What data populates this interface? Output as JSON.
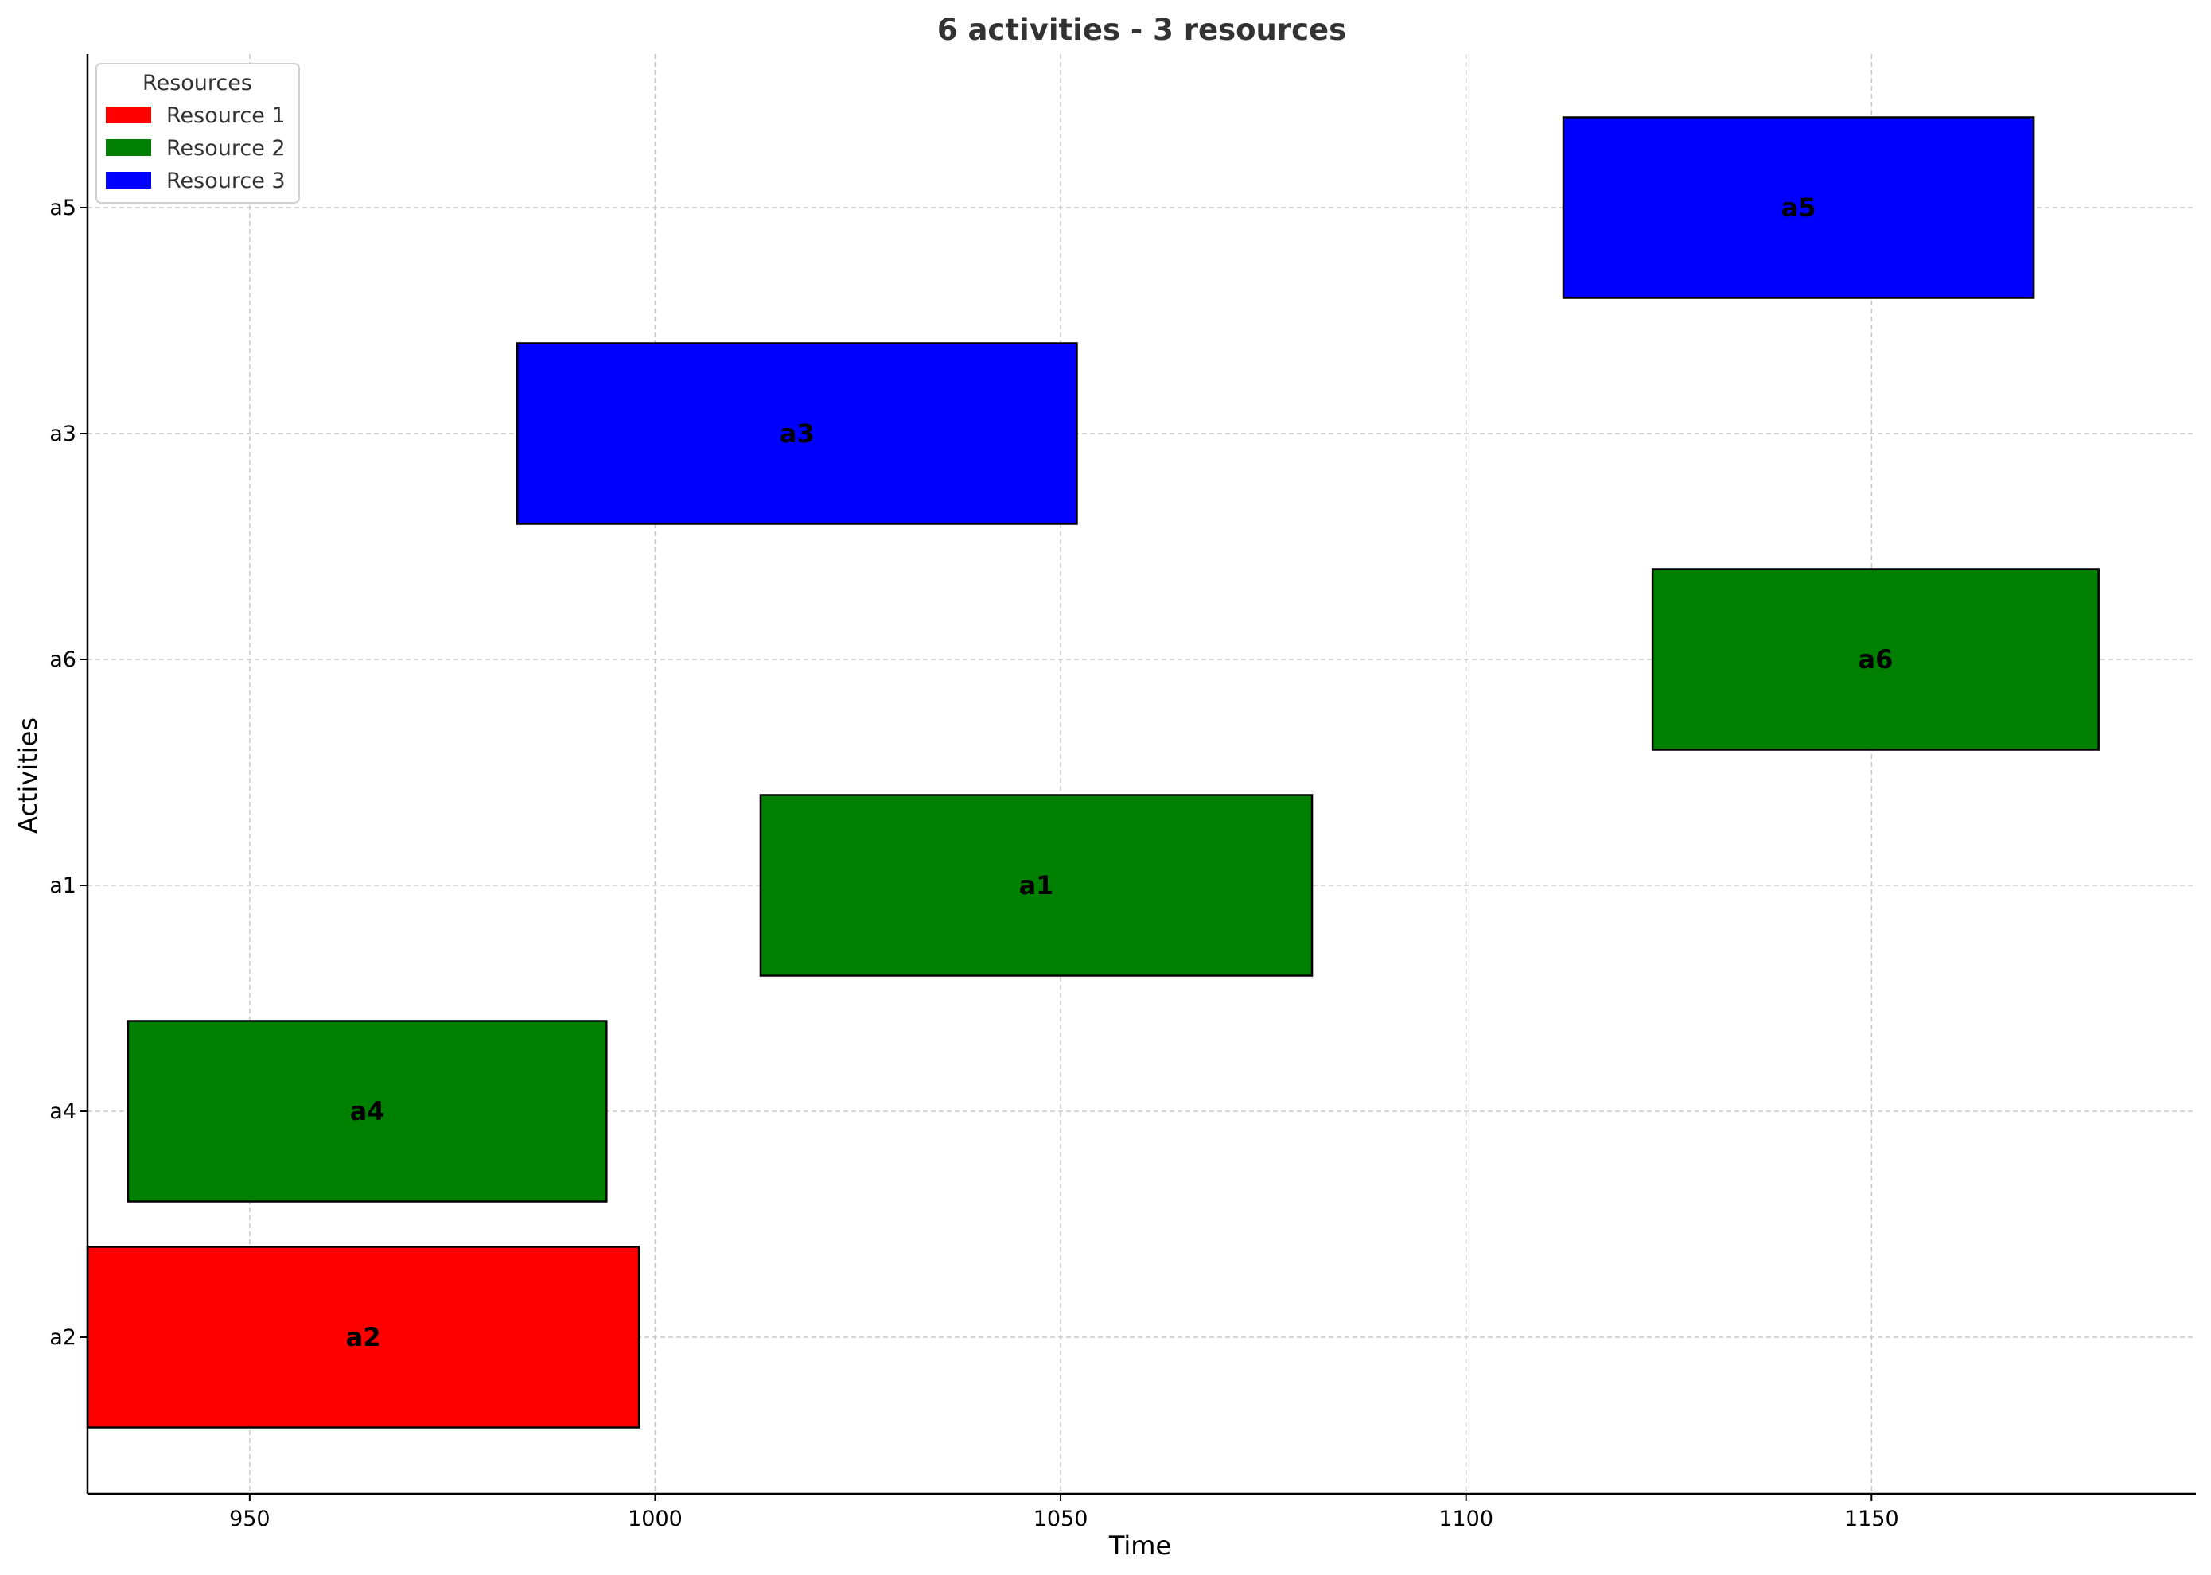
{
  "chart_data": {
    "type": "bar",
    "orientation": "horizontal",
    "title": "6 activities - 3 resources",
    "xlabel": "Time",
    "ylabel": "Activities",
    "xlim": [
      930,
      1190
    ],
    "xticks": [
      950,
      1000,
      1050,
      1100,
      1150
    ],
    "categories": [
      "a2",
      "a4",
      "a1",
      "a6",
      "a3",
      "a5"
    ],
    "grid": true,
    "legend": {
      "title": "Resources",
      "placement": "top-left",
      "entries": [
        {
          "name": "Resource 1",
          "color": "#ff0000"
        },
        {
          "name": "Resource 2",
          "color": "#008000"
        },
        {
          "name": "Resource 3",
          "color": "#0000ff"
        }
      ]
    },
    "bars": [
      {
        "activity": "a2",
        "start": 930,
        "end": 998,
        "resource": "Resource 1",
        "color": "#ff0000"
      },
      {
        "activity": "a4",
        "start": 935,
        "end": 994,
        "resource": "Resource 2",
        "color": "#008000"
      },
      {
        "activity": "a1",
        "start": 1013,
        "end": 1081,
        "resource": "Resource 2",
        "color": "#008000"
      },
      {
        "activity": "a6",
        "start": 1123,
        "end": 1178,
        "resource": "Resource 2",
        "color": "#008000"
      },
      {
        "activity": "a3",
        "start": 983,
        "end": 1052,
        "resource": "Resource 3",
        "color": "#0000ff"
      },
      {
        "activity": "a5",
        "start": 1112,
        "end": 1170,
        "resource": "Resource 3",
        "color": "#0000ff"
      }
    ]
  }
}
